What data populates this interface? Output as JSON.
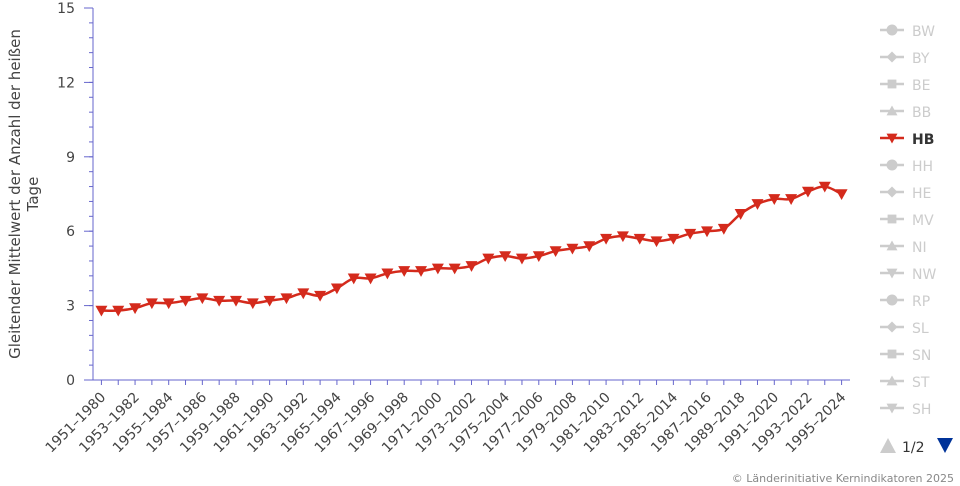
{
  "chart_data": {
    "type": "line",
    "title": "",
    "xlabel": "",
    "ylabel": "Gleitender Mittelwert der Anzahl der heißen Tage",
    "ylim": [
      0,
      15
    ],
    "yticks": [
      0,
      3,
      6,
      9,
      12,
      15
    ],
    "grid": false,
    "legend_position": "right",
    "categories": [
      "1951–1980",
      "1952–1981",
      "1953–1982",
      "1954–1983",
      "1955–1984",
      "1956–1985",
      "1957–1986",
      "1958–1987",
      "1959–1988",
      "1960–1989",
      "1961–1990",
      "1962–1991",
      "1963–1992",
      "1964–1993",
      "1965–1994",
      "1966–1995",
      "1967–1996",
      "1968–1997",
      "1969–1998",
      "1970–1999",
      "1971–2000",
      "1972–2001",
      "1973–2002",
      "1974–2003",
      "1975–2004",
      "1976–2005",
      "1977–2006",
      "1978–2007",
      "1979–2008",
      "1980–2009",
      "1981–2010",
      "1982–2011",
      "1983–2012",
      "1984–2013",
      "1985–2014",
      "1986–2015",
      "1987–2016",
      "1988–2017",
      "1989–2018",
      "1990–2019",
      "1991–2020",
      "1992–2021",
      "1993–2022",
      "1994–2023",
      "1995–2024"
    ],
    "x_tick_labels": [
      "1951–1980",
      "1953–1982",
      "1955–1984",
      "1957–1986",
      "1959–1988",
      "1961–1990",
      "1963–1992",
      "1965–1994",
      "1967–1996",
      "1969–1998",
      "1971–2000",
      "1973–2002",
      "1975–2004",
      "1977–2006",
      "1979–2008",
      "1981–2010",
      "1983–2012",
      "1985–2014",
      "1987–2016",
      "1989–2018",
      "1991–2020",
      "1993–2022",
      "1995–2024"
    ],
    "series": [
      {
        "name": "HB",
        "color": "#d42a1c",
        "marker": "triangle-down",
        "values": [
          2.8,
          2.8,
          2.9,
          3.1,
          3.1,
          3.2,
          3.3,
          3.2,
          3.2,
          3.1,
          3.2,
          3.3,
          3.5,
          3.4,
          3.7,
          4.1,
          4.1,
          4.3,
          4.4,
          4.4,
          4.5,
          4.5,
          4.6,
          4.9,
          5.0,
          4.9,
          5.0,
          5.2,
          5.3,
          5.4,
          5.7,
          5.8,
          5.7,
          5.6,
          5.7,
          5.9,
          6.0,
          6.1,
          6.7,
          7.1,
          7.3,
          7.3,
          7.6,
          7.8,
          7.5
        ]
      }
    ]
  },
  "legend": {
    "items": [
      {
        "label": "BW",
        "marker": "circle",
        "active": false
      },
      {
        "label": "BY",
        "marker": "diamond",
        "active": false
      },
      {
        "label": "BE",
        "marker": "square",
        "active": false
      },
      {
        "label": "BB",
        "marker": "triangle-up",
        "active": false
      },
      {
        "label": "HB",
        "marker": "triangle-down",
        "active": true
      },
      {
        "label": "HH",
        "marker": "circle",
        "active": false
      },
      {
        "label": "HE",
        "marker": "diamond",
        "active": false
      },
      {
        "label": "MV",
        "marker": "square",
        "active": false
      },
      {
        "label": "NI",
        "marker": "triangle-up",
        "active": false
      },
      {
        "label": "NW",
        "marker": "triangle-down",
        "active": false
      },
      {
        "label": "RP",
        "marker": "circle",
        "active": false
      },
      {
        "label": "SL",
        "marker": "diamond",
        "active": false
      },
      {
        "label": "SN",
        "marker": "square",
        "active": false
      },
      {
        "label": "ST",
        "marker": "triangle-up",
        "active": false
      },
      {
        "label": "SH",
        "marker": "triangle-down",
        "active": false
      }
    ],
    "pager": "1/2",
    "inactive_color": "#cccccc",
    "active_text_color": "#333333",
    "pager_up_color": "#cccccc",
    "pager_down_color": "#003399"
  },
  "credits": "© Länderinitiative Kernindikatoren 2025",
  "colors": {
    "axis": "#6666cc",
    "series": "#d42a1c"
  }
}
